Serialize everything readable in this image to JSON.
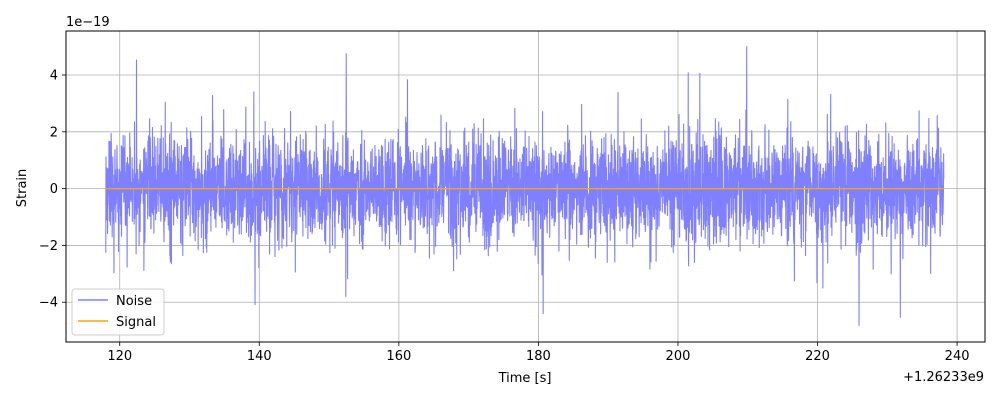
{
  "chart_data": {
    "type": "line",
    "xlabel": "Time [s]",
    "ylabel": "Strain",
    "x_offset_label": "+1.26233e9",
    "y_scale_label": "1e−19",
    "x_ticks": [
      120,
      140,
      160,
      180,
      200,
      220,
      240
    ],
    "x_tick_labels": [
      "120",
      "140",
      "160",
      "180",
      "200",
      "220",
      "240"
    ],
    "y_ticks": [
      -4,
      -2,
      0,
      2,
      4
    ],
    "y_tick_labels": [
      "−4",
      "−2",
      "0",
      "2",
      "4"
    ],
    "xlim": [
      112.3,
      244.0
    ],
    "ylim": [
      -5.4,
      5.55
    ],
    "x_range": [
      118.0,
      238.1
    ],
    "grid": true,
    "legend_position": "lower-left",
    "series": [
      {
        "name": "Noise",
        "color": "#8080ff",
        "description_values": {
          "typical_envelope": [
            -2.5,
            2.5
          ],
          "max_peak": 5.0,
          "min_peak": -4.9
        }
      },
      {
        "name": "Signal",
        "color": "#ffa500",
        "constant_value": 0.0
      }
    ]
  }
}
